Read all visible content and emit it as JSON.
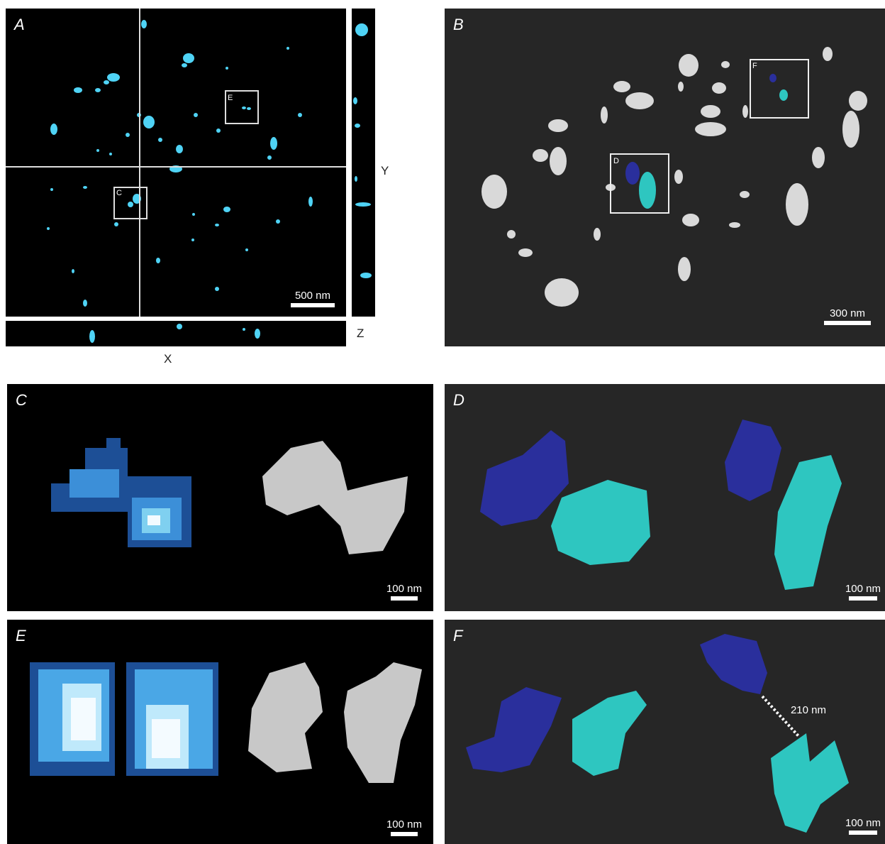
{
  "panels": {
    "A": {
      "label": "A",
      "scale_bar": "500 nm",
      "inset_labels": [
        "E",
        "C"
      ]
    },
    "B": {
      "label": "B",
      "scale_bar": "300 nm",
      "inset_labels": [
        "F",
        "D"
      ]
    },
    "C": {
      "label": "C",
      "scale_bar": "100 nm"
    },
    "D": {
      "label": "D",
      "scale_bar": "100 nm"
    },
    "E": {
      "label": "E",
      "scale_bar": "100 nm"
    },
    "F": {
      "label": "F",
      "scale_bar": "100 nm",
      "distance": "210 nm"
    }
  },
  "axes": {
    "y": "Y",
    "z": "Z",
    "x": "X"
  },
  "colors": {
    "cyan_signal": "#4fd3f5",
    "blue_surface": "#2a2f9c",
    "teal_surface": "#2ec6c0",
    "grey_surface": "#d9d9d9",
    "dark_bg": "#262626"
  }
}
